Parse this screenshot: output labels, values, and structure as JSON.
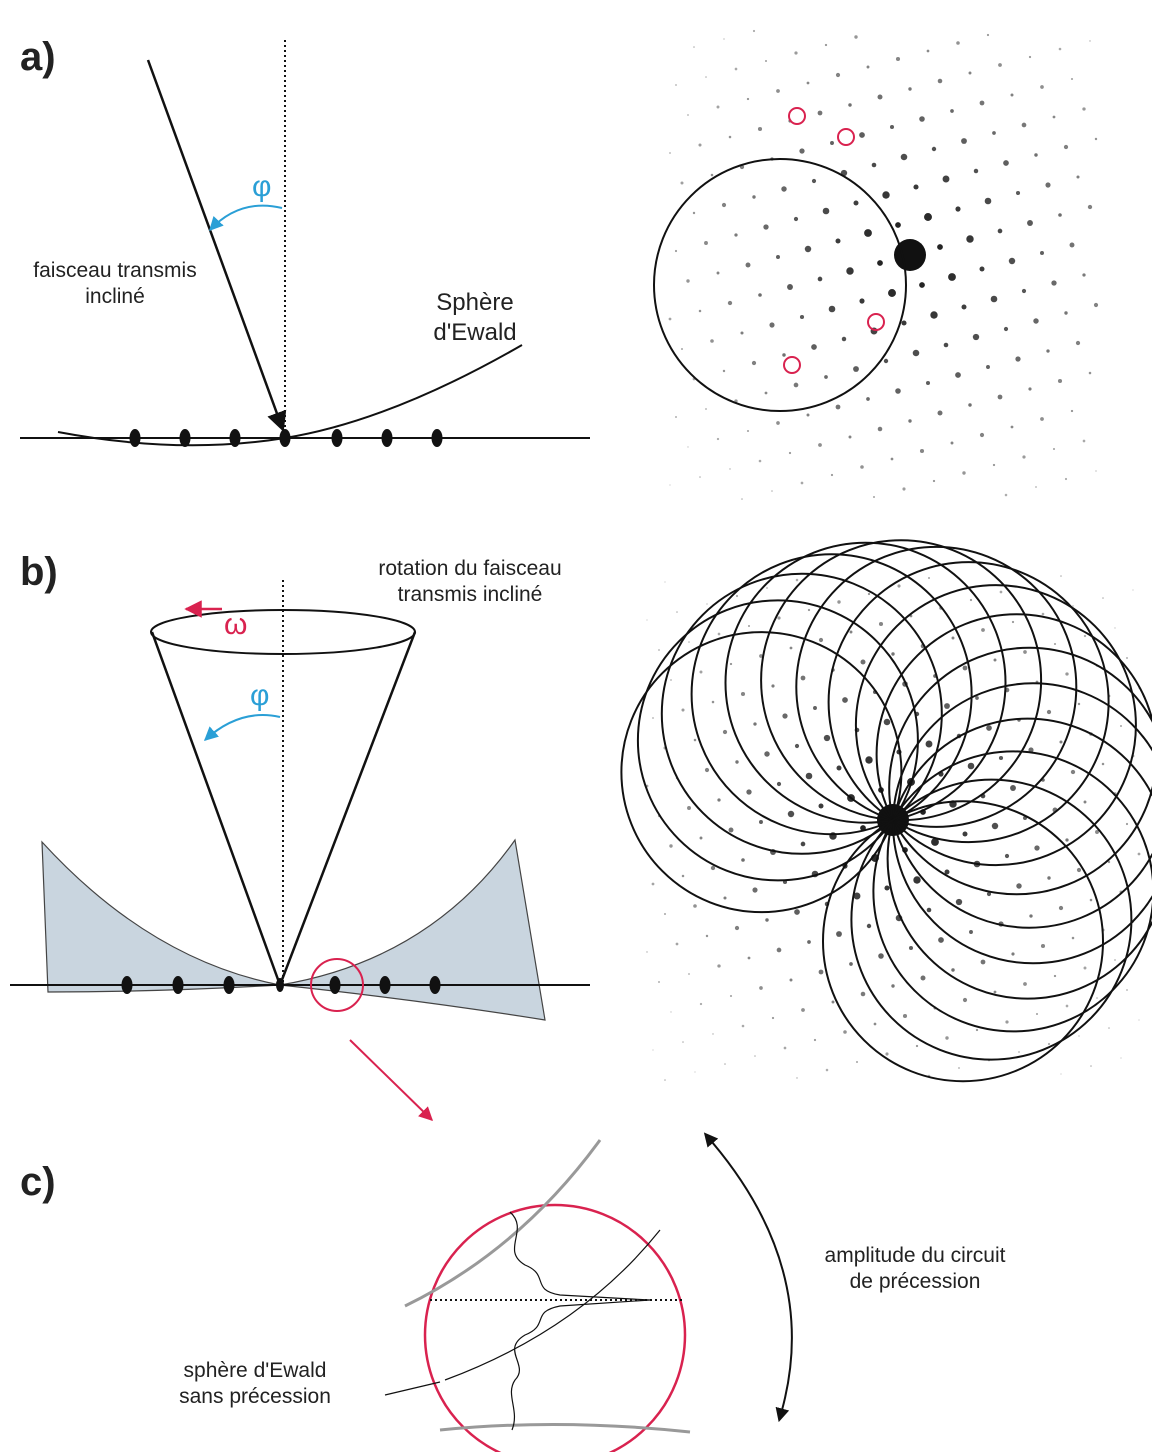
{
  "panel_a": {
    "label": "a)",
    "angle_symbol": "φ",
    "beam_label": [
      "faisceau transmis",
      "incliné"
    ],
    "sphere_label": [
      "Sphère",
      "d'Ewald"
    ]
  },
  "panel_b": {
    "label": "b)",
    "rotation_symbol": "ω",
    "angle_symbol": "φ",
    "rotation_label": [
      "rotation du faisceau",
      "transmis incliné"
    ]
  },
  "panel_c": {
    "label": "c)",
    "amplitude_label": [
      "amplitude du circuit",
      "de précession"
    ],
    "sphere_label": [
      "sphère d'Ewald",
      "sans précession"
    ]
  }
}
